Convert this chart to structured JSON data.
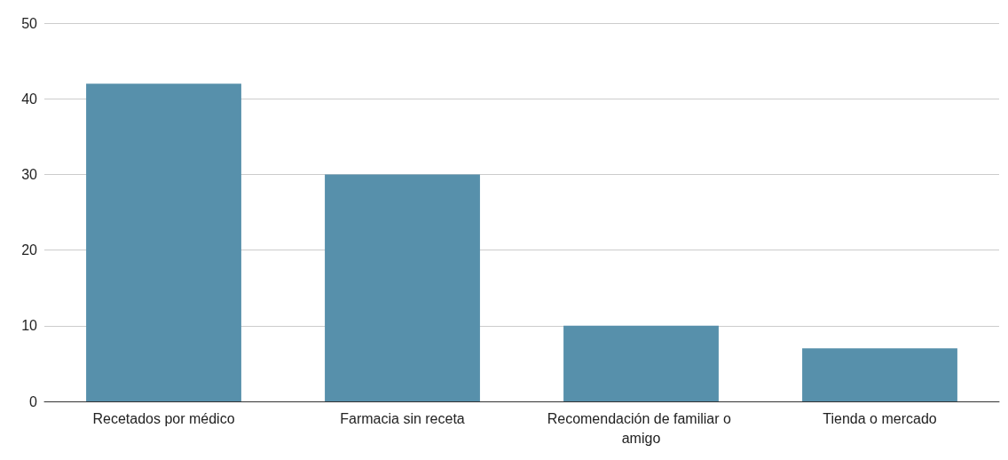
{
  "chart_data": {
    "type": "bar",
    "categories": [
      "Recetados por médico",
      "Farmacia sin receta",
      "Recomendación de familiar o amigo",
      "Tienda o mercado"
    ],
    "values": [
      42,
      30,
      10,
      7
    ],
    "color": "#5790ab",
    "ylim": [
      0,
      50
    ],
    "yticks": [
      0,
      10,
      20,
      30,
      40,
      50
    ],
    "grid": true
  }
}
